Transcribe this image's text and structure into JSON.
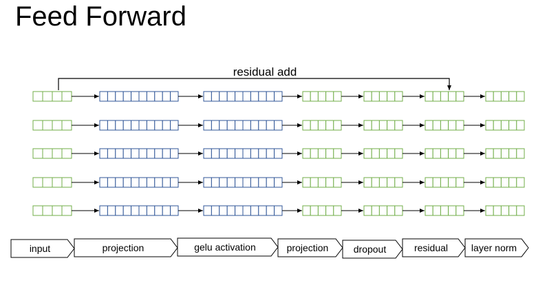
{
  "title": "Feed Forward",
  "residual_label": "residual add",
  "rows": 5,
  "colors": {
    "green": "#70ad47",
    "blue": "#2f5597",
    "stroke": "#000000"
  },
  "blocks": [
    {
      "cells": 4,
      "color": "green"
    },
    {
      "cells": 10,
      "color": "blue"
    },
    {
      "cells": 10,
      "color": "blue"
    },
    {
      "cells": 5,
      "color": "green"
    },
    {
      "cells": 5,
      "color": "green"
    },
    {
      "cells": 5,
      "color": "green"
    },
    {
      "cells": 5,
      "color": "green"
    }
  ],
  "stages": [
    "input",
    "projection",
    "gelu activation",
    "projection",
    "dropout",
    "residual",
    "layer norm"
  ]
}
